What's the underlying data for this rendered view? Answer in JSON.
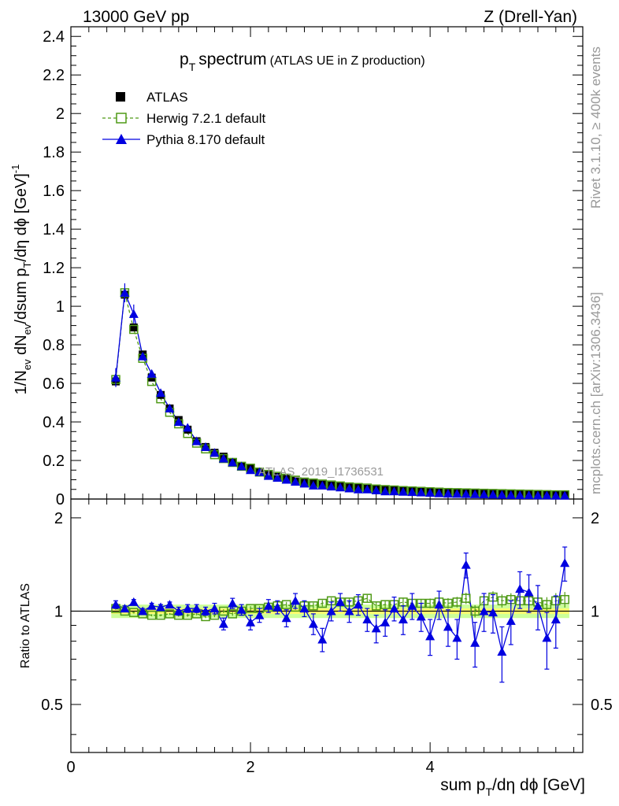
{
  "header": {
    "left": "13000 GeV pp",
    "right": "Z (Drell-Yan)"
  },
  "side_labels": {
    "rivet": "Rivet 3.1.10, ≥ 400k events",
    "mcplots": "mcplots.cern.ch [arXiv:1306.3436]"
  },
  "chart_data": {
    "type": "scatter",
    "title": "p_T spectrum",
    "title_text": "spectrum",
    "title_sub": "(ATLAS UE in Z production)",
    "watermark": "ATLAS_2019_I1736531",
    "xlabel": "sum p_T/dη dϕ [GeV]",
    "ylabel": "1/N_ev dN_ev/dsum p_T/dη dϕ [GeV]^-1",
    "ratio_ylabel": "Ratio to ATLAS",
    "xlim": [
      0,
      5.7
    ],
    "ylim": [
      0,
      2.45
    ],
    "ratio_ylim": [
      0.35,
      2.3
    ],
    "x_ticks": [
      "0",
      "2",
      "4"
    ],
    "y_ticks": [
      "0",
      "0.2",
      "0.4",
      "0.6",
      "0.8",
      "1",
      "1.2",
      "1.4",
      "1.6",
      "1.8",
      "2",
      "2.2",
      "2.4"
    ],
    "ratio_ticks": [
      "0.5",
      "1",
      "2"
    ],
    "legend": {
      "atlas": "ATLAS",
      "herwig": "Herwig 7.2.1 default",
      "pythia": "Pythia 8.170 default"
    },
    "colors": {
      "atlas": "#000000",
      "herwig": "#4f9a16",
      "pythia": "#0000e0",
      "band_inner": "#fffc6e",
      "band_outer": "#ccff99"
    },
    "x": [
      0.5,
      0.6,
      0.7,
      0.8,
      0.9,
      1.0,
      1.1,
      1.2,
      1.3,
      1.4,
      1.5,
      1.6,
      1.7,
      1.8,
      1.9,
      2.0,
      2.1,
      2.2,
      2.3,
      2.4,
      2.5,
      2.6,
      2.7,
      2.8,
      2.9,
      3.0,
      3.1,
      3.2,
      3.3,
      3.4,
      3.5,
      3.6,
      3.7,
      3.8,
      3.9,
      4.0,
      4.1,
      4.2,
      4.3,
      4.4,
      4.5,
      4.6,
      4.7,
      4.8,
      4.9,
      5.0,
      5.1,
      5.2,
      5.3,
      5.4,
      5.5
    ],
    "atlas": [
      0.61,
      1.06,
      0.89,
      0.75,
      0.63,
      0.54,
      0.47,
      0.41,
      0.36,
      0.3,
      0.27,
      0.24,
      0.22,
      0.19,
      0.17,
      0.16,
      0.14,
      0.125,
      0.115,
      0.105,
      0.095,
      0.085,
      0.08,
      0.075,
      0.07,
      0.065,
      0.06,
      0.057,
      0.054,
      0.05,
      0.047,
      0.045,
      0.042,
      0.04,
      0.038,
      0.036,
      0.034,
      0.032,
      0.031,
      0.03,
      0.029,
      0.028,
      0.027,
      0.026,
      0.025,
      0.024,
      0.023,
      0.023,
      0.022,
      0.021,
      0.021
    ],
    "herwig": [
      0.62,
      1.07,
      0.88,
      0.73,
      0.61,
      0.52,
      0.45,
      0.39,
      0.34,
      0.29,
      0.26,
      0.23,
      0.21,
      0.19,
      0.17,
      0.16,
      0.14,
      0.128,
      0.118,
      0.108,
      0.098,
      0.088,
      0.083,
      0.078,
      0.073,
      0.068,
      0.063,
      0.06,
      0.057,
      0.052,
      0.049,
      0.047,
      0.044,
      0.042,
      0.04,
      0.038,
      0.036,
      0.034,
      0.033,
      0.032,
      0.031,
      0.03,
      0.029,
      0.028,
      0.027,
      0.026,
      0.025,
      0.024,
      0.023,
      0.022,
      0.022
    ],
    "pythia": [
      0.63,
      1.07,
      0.96,
      0.74,
      0.65,
      0.55,
      0.47,
      0.4,
      0.37,
      0.3,
      0.27,
      0.24,
      0.21,
      0.19,
      0.17,
      0.15,
      0.14,
      0.12,
      0.11,
      0.1,
      0.09,
      0.08,
      0.07,
      0.07,
      0.065,
      0.06,
      0.055,
      0.05,
      0.05,
      0.045,
      0.04,
      0.04,
      0.038,
      0.036,
      0.034,
      0.032,
      0.03,
      0.028,
      0.027,
      0.026,
      0.025,
      0.024,
      0.023,
      0.022,
      0.021,
      0.02,
      0.02,
      0.019,
      0.019,
      0.018,
      0.018
    ],
    "ratio_herwig": [
      1.02,
      1.0,
      0.99,
      0.98,
      0.97,
      0.97,
      0.98,
      0.97,
      0.97,
      0.98,
      0.96,
      0.97,
      1.0,
      0.98,
      1.0,
      1.02,
      1.02,
      1.03,
      1.04,
      1.05,
      1.03,
      1.04,
      1.04,
      1.06,
      1.08,
      1.07,
      1.07,
      1.08,
      1.1,
      1.04,
      1.05,
      1.05,
      1.07,
      1.06,
      1.06,
      1.06,
      1.07,
      1.06,
      1.07,
      1.1,
      1.0,
      1.08,
      1.11,
      1.08,
      1.09,
      1.08,
      1.08,
      1.07,
      1.05,
      1.08,
      1.09
    ],
    "ratio_pythia": [
      1.05,
      1.02,
      1.07,
      1.0,
      1.04,
      1.03,
      1.05,
      1.0,
      1.02,
      1.02,
      1.0,
      1.02,
      0.91,
      1.06,
      1.01,
      0.92,
      0.97,
      1.04,
      1.03,
      0.95,
      1.08,
      1.02,
      0.91,
      0.81,
      1.0,
      1.07,
      1.0,
      1.05,
      0.94,
      0.88,
      0.92,
      1.02,
      0.94,
      1.04,
      0.96,
      0.83,
      1.05,
      0.89,
      0.82,
      1.41,
      0.79,
      1.0,
      0.99,
      0.74,
      0.93,
      1.18,
      1.15,
      1.04,
      0.82,
      0.94,
      1.43
    ],
    "ratio_err": [
      0.03,
      0.02,
      0.02,
      0.02,
      0.02,
      0.02,
      0.02,
      0.03,
      0.03,
      0.03,
      0.03,
      0.04,
      0.04,
      0.04,
      0.04,
      0.05,
      0.05,
      0.05,
      0.05,
      0.06,
      0.06,
      0.06,
      0.07,
      0.07,
      0.07,
      0.07,
      0.08,
      0.08,
      0.08,
      0.09,
      0.09,
      0.09,
      0.1,
      0.1,
      0.1,
      0.11,
      0.11,
      0.12,
      0.12,
      0.13,
      0.13,
      0.14,
      0.14,
      0.15,
      0.15,
      0.16,
      0.16,
      0.17,
      0.17,
      0.18,
      0.18
    ],
    "band_inner": 0.02,
    "band_outer": 0.05
  }
}
